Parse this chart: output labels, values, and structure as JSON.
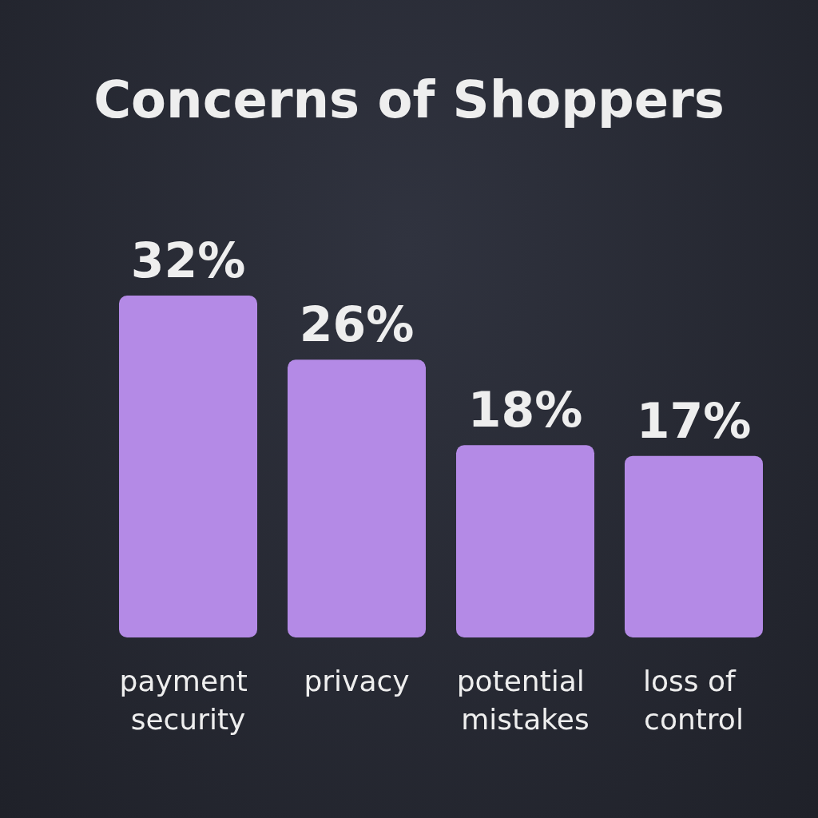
{
  "chart_data": {
    "type": "bar",
    "title": "Concerns of Shoppers",
    "categories": [
      "payment security",
      "privacy",
      "potential mistakes",
      "loss of control"
    ],
    "values": [
      32,
      26,
      18,
      17
    ],
    "value_labels": [
      "32%",
      "26%",
      "18%",
      "17%"
    ],
    "color": "#b48ae6"
  }
}
